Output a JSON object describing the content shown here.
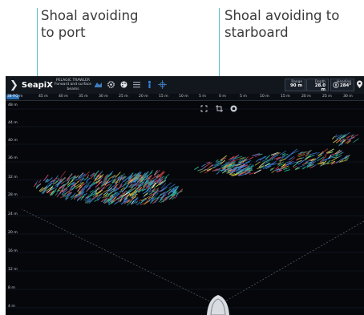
{
  "annotations": {
    "port": "Shoal avoiding\nto port",
    "starboard": "Shoal avoiding to\nstarboard"
  },
  "app": {
    "logo": "SeapiX",
    "mode_lines": [
      "PELAGIC TRAWLER",
      "Forward and surface",
      "beams"
    ]
  },
  "readouts": {
    "range_label": "Range",
    "range_value": "90 m",
    "depth_label": "Depth",
    "depth_value": "28.0 m",
    "heading_label": "Heading",
    "heading_value": "284°"
  },
  "ruler": {
    "tag": "38-RQ",
    "ticks": [
      "m",
      "45 m",
      "40 m",
      "35 m",
      "30 m",
      "25 m",
      "20 m",
      "15 m",
      "10 m",
      "5 m",
      "0 m",
      "5 m",
      "10 m",
      "15 m",
      "20 m",
      "25 m",
      "30 m"
    ]
  },
  "depth_scale": [
    "48 m",
    "44 m",
    "40 m",
    "36 m",
    "32 m",
    "28 m",
    "24 m",
    "20 m",
    "16 m",
    "12 m",
    "8 m",
    "4 m"
  ],
  "colors": {
    "background": "#05070b",
    "topbar": "#12161d",
    "leader_line": "#4fc3c7",
    "echo_palette": [
      "#3f83d8",
      "#2fbf9b",
      "#e0d24a",
      "#e04848",
      "#c3507f",
      "#ffffff"
    ]
  },
  "icons": [
    "fish-icon",
    "gear-icon",
    "palette-icon",
    "list-icon",
    "person-icon",
    "target-icon",
    "compass-icon",
    "location-icon",
    "expand-icon",
    "crop-icon",
    "camera-icon"
  ]
}
